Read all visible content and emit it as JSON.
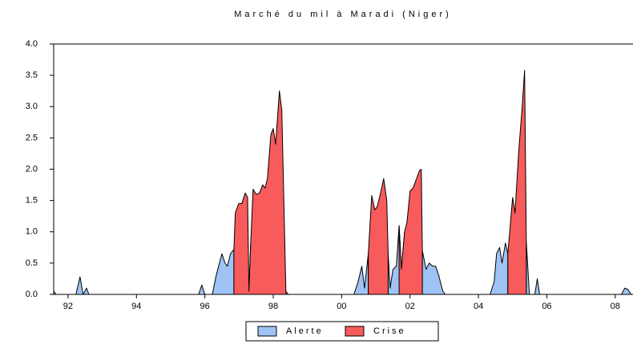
{
  "chart_data": {
    "type": "area",
    "title": "Marché du mil à Maradi (Niger)",
    "x": [
      1991.58,
      1991.65,
      1992.23,
      1992.35,
      1992.44,
      1992.54,
      1992.61,
      1995.82,
      1995.91,
      1996.0,
      1996.22,
      1996.33,
      1996.5,
      1996.59,
      1996.66,
      1996.75,
      1996.85,
      1996.89,
      1996.99,
      1997.08,
      1997.18,
      1997.25,
      1997.29,
      1997.34,
      1997.41,
      1997.5,
      1997.6,
      1997.69,
      1997.76,
      1997.83,
      1997.93,
      1998.0,
      1998.07,
      1998.18,
      1998.25,
      1998.37,
      1998.44,
      2000.36,
      2000.48,
      2000.59,
      2000.67,
      2000.78,
      2000.88,
      2000.97,
      2001.04,
      2001.13,
      2001.23,
      2001.32,
      2001.36,
      2001.42,
      2001.5,
      2001.6,
      2001.68,
      2001.75,
      2001.84,
      2001.91,
      2002.0,
      2002.09,
      2002.19,
      2002.28,
      2002.33,
      2002.36,
      2002.47,
      2002.56,
      2002.66,
      2002.75,
      2002.84,
      2002.96,
      2003.03,
      2004.34,
      2004.46,
      2004.53,
      2004.62,
      2004.69,
      2004.79,
      2004.86,
      2004.93,
      2005.0,
      2005.07,
      2005.18,
      2005.28,
      2005.35,
      2005.4,
      2005.49,
      2005.65,
      2005.72,
      2005.79,
      2008.18,
      2008.28,
      2008.37,
      2008.46
    ],
    "series": [
      {
        "name": "Alerte",
        "color": "#9fc3f5",
        "values": [
          0.05,
          0,
          0,
          0.28,
          0,
          0.1,
          0,
          0,
          0.15,
          0,
          0,
          0.3,
          0.65,
          0.5,
          0.45,
          0.65,
          0.72,
          null,
          null,
          null,
          null,
          null,
          0.05,
          0.8,
          null,
          null,
          null,
          null,
          null,
          null,
          null,
          null,
          null,
          null,
          null,
          0.05,
          0,
          0,
          0.2,
          0.45,
          0.1,
          0.65,
          null,
          null,
          null,
          null,
          null,
          null,
          0.65,
          0.1,
          0.4,
          0.45,
          1.1,
          0.4,
          1.0,
          null,
          null,
          null,
          null,
          null,
          null,
          0.7,
          0.4,
          0.5,
          0.45,
          0.45,
          0.3,
          0.05,
          0,
          0,
          0.2,
          0.65,
          0.75,
          0.5,
          0.82,
          0.65,
          null,
          null,
          null,
          null,
          null,
          null,
          0.85,
          0,
          0,
          0.25,
          0,
          0,
          0.1,
          0.08,
          0
        ]
      },
      {
        "name": "Crise",
        "color": "#f75b5b",
        "values": [
          null,
          null,
          null,
          null,
          null,
          null,
          null,
          null,
          null,
          null,
          null,
          null,
          null,
          null,
          null,
          null,
          0.72,
          1.3,
          1.45,
          1.45,
          1.62,
          1.55,
          0.05,
          0.8,
          1.68,
          1.6,
          1.62,
          1.75,
          1.7,
          1.85,
          2.55,
          2.65,
          2.4,
          3.25,
          2.95,
          0.05,
          null,
          null,
          null,
          null,
          null,
          0.65,
          1.58,
          1.35,
          1.4,
          1.6,
          1.85,
          1.5,
          0.65,
          null,
          null,
          null,
          1.1,
          0.4,
          1.0,
          1.15,
          1.65,
          1.7,
          1.85,
          1.98,
          2.0,
          0.7,
          null,
          null,
          null,
          null,
          null,
          null,
          null,
          null,
          null,
          null,
          null,
          null,
          null,
          0.65,
          1.1,
          1.55,
          1.3,
          2.3,
          3.0,
          3.58,
          0.85,
          null,
          null,
          null,
          null,
          null,
          null,
          null,
          null
        ]
      }
    ],
    "xlim": [
      1991.58,
      2008.52
    ],
    "xticks": [
      {
        "value": 1992,
        "label": "92"
      },
      {
        "value": 1994,
        "label": "94"
      },
      {
        "value": 1996,
        "label": "96"
      },
      {
        "value": 1998,
        "label": "98"
      },
      {
        "value": 2000,
        "label": "00"
      },
      {
        "value": 2002,
        "label": "02"
      },
      {
        "value": 2004,
        "label": "04"
      },
      {
        "value": 2006,
        "label": "06"
      },
      {
        "value": 2008,
        "label": "08"
      }
    ],
    "ylim": [
      0,
      4
    ],
    "yticks": [
      {
        "value": 0,
        "label": "0.0"
      },
      0.5,
      {
        "value": 1,
        "label": "1.0"
      },
      1.5,
      {
        "value": 2,
        "label": "2.0"
      },
      2.5,
      {
        "value": 3,
        "label": "3.0"
      },
      3.5,
      {
        "value": 4,
        "label": "4.0"
      }
    ],
    "grid": false,
    "legend": "bottom"
  }
}
